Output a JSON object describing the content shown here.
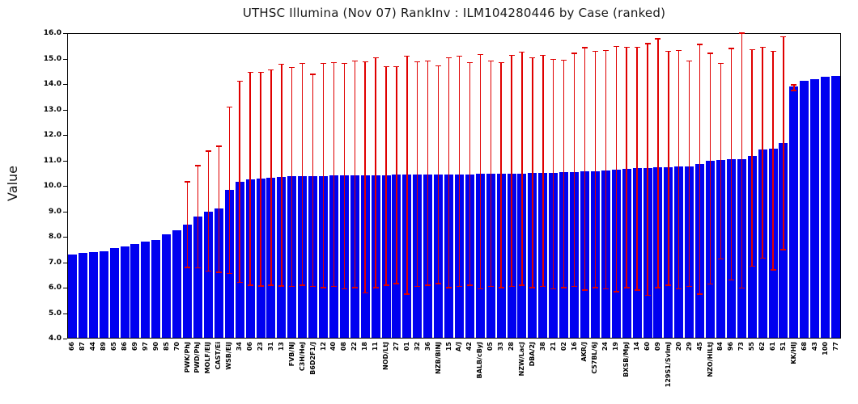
{
  "title": "UTHSC Illumina (Nov 07) RankInv : ILM104280446 by Case (ranked)",
  "ylabel": "Value",
  "colors": {
    "bar": "#0000f0",
    "error_bar": "#e00000",
    "axis": "#000000",
    "background": "#ffffff",
    "title_text": "#1a1a1a"
  },
  "chart_data": {
    "type": "bar",
    "title": "UTHSC Illumina (Nov 07) RankInv : ILM104280446 by Case (ranked)",
    "xlabel": "",
    "ylabel": "Value",
    "ylim": [
      4.0,
      16.0
    ],
    "ytick_step": 1.0,
    "ytick_labels": [
      "4.0",
      "5.0",
      "6.0",
      "7.0",
      "8.0",
      "9.0",
      "10.0",
      "11.0",
      "12.0",
      "13.0",
      "14.0",
      "15.0",
      "16.0"
    ],
    "grid": false,
    "legend": null,
    "bar_color": "#0000f0",
    "error_color": "#e00000",
    "categories": [
      "66",
      "87",
      "44",
      "89",
      "65",
      "86",
      "69",
      "97",
      "90",
      "85",
      "70",
      "PWK/PhJ",
      "PWD/PhJ",
      "MOLF/EiJ",
      "CAST/Ei",
      "WSB/EiJ",
      "34",
      "06",
      "23",
      "31",
      "13",
      "FVB/NJ",
      "C3H/HeJ",
      "B6D2F1/J",
      "12",
      "40",
      "08",
      "22",
      "18",
      "11",
      "NOD/LtJ",
      "27",
      "01",
      "32",
      "36",
      "NZB/BlNJ",
      "15",
      "A/J",
      "42",
      "BALB/cByJ",
      "05",
      "33",
      "28",
      "NZW/LacJ",
      "DBA/2J",
      "38",
      "21",
      "02",
      "16",
      "AKR/J",
      "C57BL/6J",
      "24",
      "19",
      "BXSB/MpJ",
      "14",
      "60",
      "09",
      "129S1/SvImJ",
      "20",
      "29",
      "45",
      "NZO/HlLtJ",
      "84",
      "96",
      "73",
      "55",
      "62",
      "61",
      "51",
      "KK/HlJ",
      "68",
      "43",
      "100",
      "77"
    ],
    "values": [
      7.3,
      7.36,
      7.39,
      7.42,
      7.57,
      7.62,
      7.73,
      7.8,
      7.86,
      8.11,
      8.25,
      8.47,
      8.8,
      9.0,
      9.1,
      9.83,
      10.15,
      10.25,
      10.3,
      10.33,
      10.36,
      10.37,
      10.38,
      10.38,
      10.39,
      10.4,
      10.41,
      10.41,
      10.42,
      10.42,
      10.42,
      10.43,
      10.43,
      10.44,
      10.44,
      10.45,
      10.45,
      10.46,
      10.46,
      10.47,
      10.47,
      10.48,
      10.48,
      10.49,
      10.5,
      10.51,
      10.52,
      10.53,
      10.55,
      10.56,
      10.58,
      10.6,
      10.63,
      10.68,
      10.7,
      10.71,
      10.72,
      10.74,
      10.75,
      10.77,
      10.85,
      10.98,
      11.02,
      11.04,
      11.06,
      11.17,
      11.43,
      11.46,
      11.68,
      13.92,
      14.12,
      14.18,
      14.3,
      14.32
    ],
    "error_high": [
      null,
      null,
      null,
      null,
      null,
      null,
      null,
      null,
      null,
      null,
      null,
      10.16,
      10.8,
      11.37,
      11.56,
      13.1,
      14.11,
      14.46,
      14.46,
      14.55,
      14.78,
      14.65,
      14.81,
      14.39,
      14.81,
      14.84,
      14.81,
      14.91,
      14.87,
      15.03,
      14.68,
      14.68,
      15.1,
      14.87,
      14.91,
      14.71,
      15.03,
      15.1,
      14.84,
      15.16,
      14.91,
      14.84,
      15.13,
      15.26,
      15.03,
      15.13,
      14.97,
      14.94,
      15.2,
      15.42,
      15.29,
      15.32,
      15.48,
      15.45,
      15.45,
      15.58,
      15.77,
      15.29,
      15.32,
      14.91,
      15.55,
      15.2,
      14.81,
      15.39,
      16.0,
      15.35,
      15.45,
      15.29,
      15.86,
      13.97,
      null,
      null,
      null,
      null
    ],
    "error_low": [
      null,
      null,
      null,
      null,
      null,
      null,
      null,
      null,
      null,
      null,
      null,
      6.8,
      6.78,
      6.65,
      6.6,
      6.55,
      6.2,
      6.1,
      6.07,
      6.1,
      6.07,
      6.05,
      6.1,
      6.05,
      6.0,
      6.05,
      5.95,
      6.0,
      5.8,
      6.0,
      6.1,
      6.15,
      5.75,
      6.05,
      6.1,
      6.15,
      6.0,
      6.05,
      6.1,
      5.95,
      6.05,
      6.0,
      6.05,
      6.1,
      6.0,
      6.05,
      5.95,
      6.0,
      6.05,
      5.9,
      6.0,
      5.95,
      5.85,
      6.0,
      5.9,
      5.7,
      6.0,
      6.1,
      5.95,
      6.05,
      5.75,
      6.14,
      7.13,
      6.3,
      5.98,
      6.84,
      7.16,
      6.7,
      7.5,
      13.75,
      null,
      null,
      null,
      null
    ]
  }
}
